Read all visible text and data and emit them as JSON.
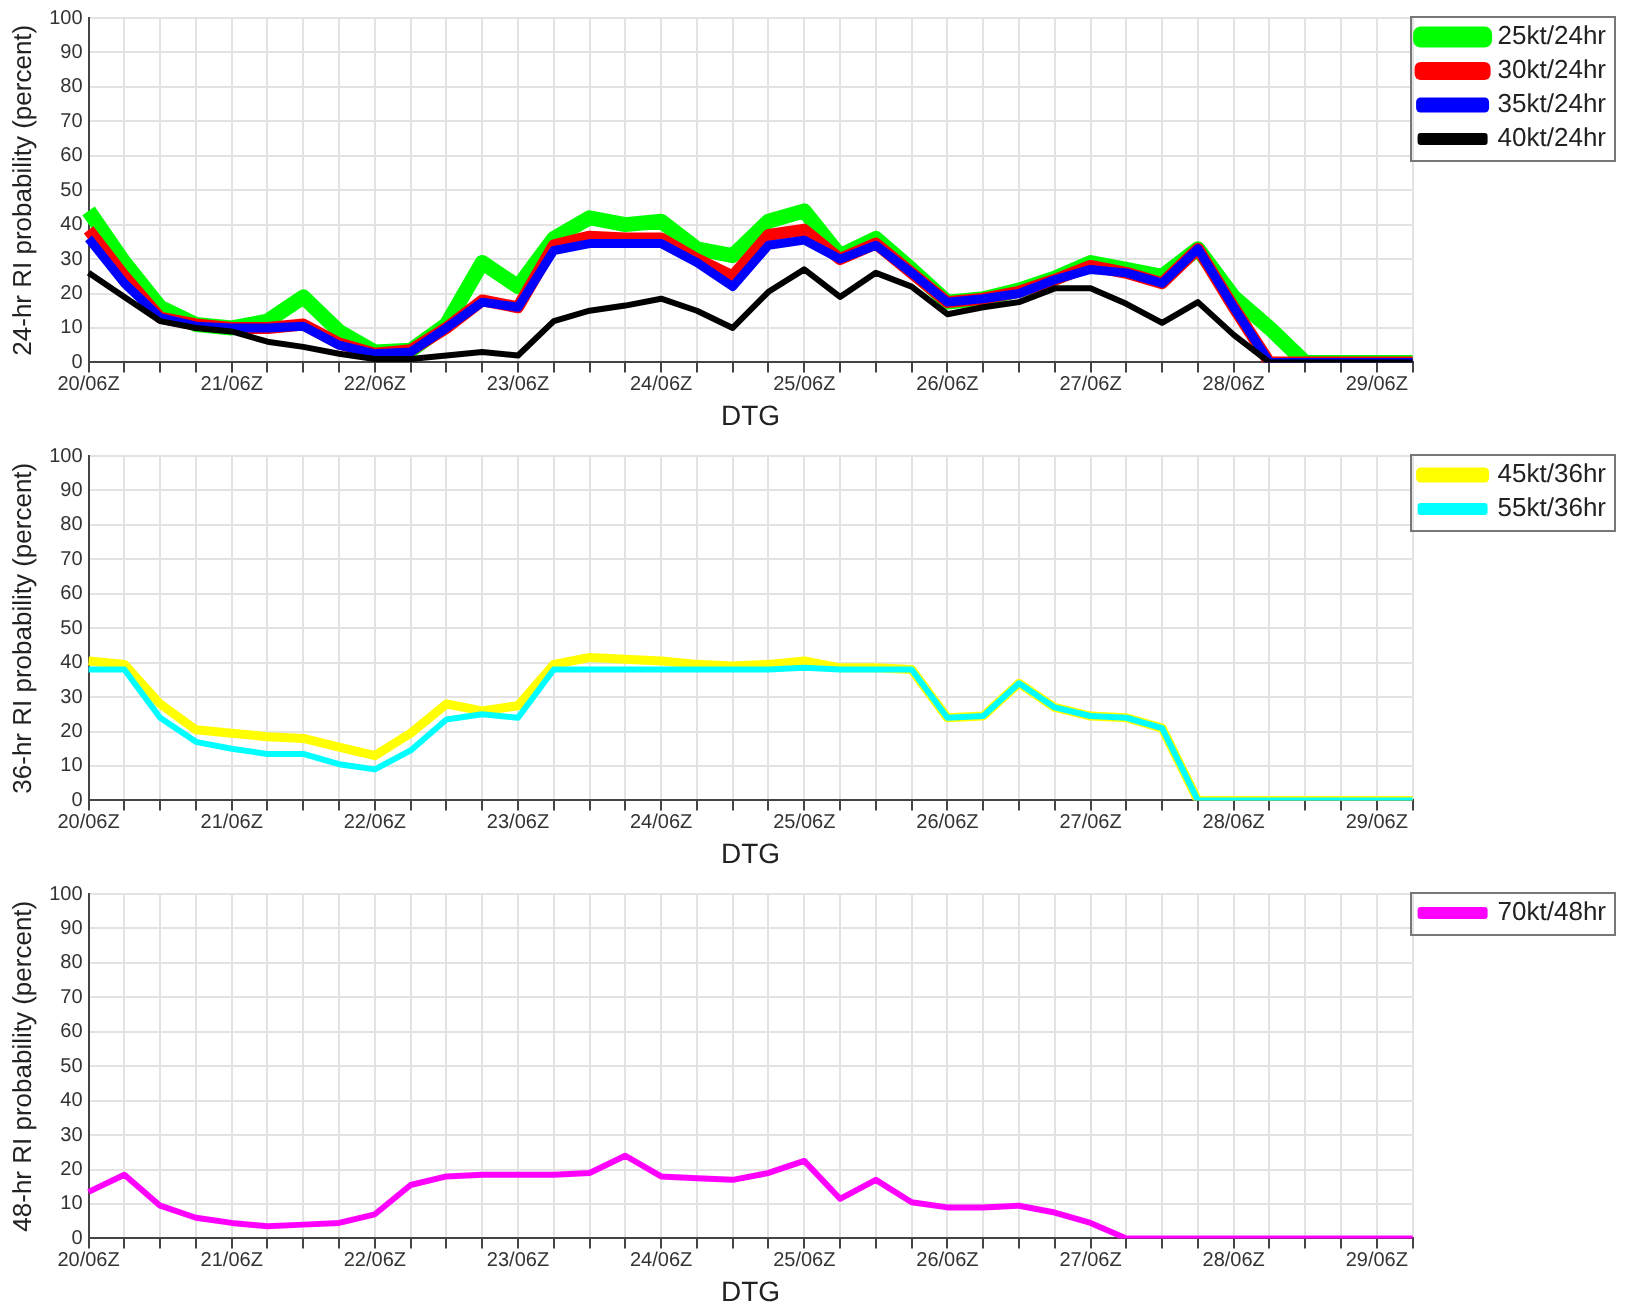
{
  "chart_data": [
    {
      "type": "line",
      "xlabel": "DTG",
      "ylabel": "24-hr RI probability (percent)",
      "legend": "top right",
      "grid": true,
      "categories": [
        "20/06Z",
        null,
        null,
        null,
        "21/06Z",
        null,
        null,
        null,
        "22/06Z",
        null,
        null,
        null,
        "23/06Z",
        null,
        null,
        null,
        "24/06Z",
        null,
        null,
        null,
        "25/06Z",
        null,
        null,
        null,
        "26/06Z",
        null,
        null,
        null,
        "27/06Z",
        null,
        null,
        null,
        "28/06Z",
        null,
        null,
        null,
        "29/06Z",
        null
      ],
      "ylim": [
        0,
        100
      ],
      "yticks": [
        0,
        10,
        20,
        30,
        40,
        50,
        60,
        70,
        80,
        90,
        100
      ],
      "series": [
        {
          "name": "25kt/24hr",
          "color": "#00ff00",
          "values": [
            44,
            29,
            16,
            11,
            10,
            12,
            19,
            9,
            3,
            3.5,
            11,
            29,
            22,
            36,
            42,
            40,
            41,
            33,
            31,
            41,
            44,
            31,
            36,
            27,
            17.5,
            18.5,
            21,
            24.5,
            29,
            27,
            25,
            33,
            19,
            10,
            0,
            0,
            0,
            0
          ]
        },
        {
          "name": "30kt/24hr",
          "color": "#ff0000",
          "values": [
            38.5,
            25,
            13,
            11,
            10,
            10,
            11,
            5.5,
            2.5,
            3.5,
            10,
            18,
            16,
            34,
            36.5,
            36,
            36,
            30,
            25,
            37,
            38.5,
            30,
            34.5,
            26,
            17.5,
            18.5,
            20.5,
            24,
            28,
            26,
            23,
            33,
            16,
            0,
            0,
            0,
            0,
            0
          ]
        },
        {
          "name": "35kt/24hr",
          "color": "#0000ff",
          "values": [
            36,
            23,
            13,
            10.5,
            10,
            10,
            10.5,
            5,
            2.5,
            3,
            10,
            17.5,
            16,
            32.5,
            34.5,
            34.5,
            34.5,
            29,
            22,
            34,
            35.5,
            30,
            34,
            26,
            17.5,
            18.5,
            20,
            24,
            27,
            26,
            23,
            33,
            16,
            0,
            0,
            0,
            0,
            0
          ]
        },
        {
          "name": "40kt/24hr",
          "color": "#000000",
          "values": [
            26,
            19,
            12,
            10,
            9,
            6,
            4.5,
            2.5,
            1,
            1,
            2,
            3,
            2,
            12,
            15,
            16.5,
            18.5,
            15,
            10,
            20.5,
            27,
            19,
            26,
            22,
            14,
            16,
            17.5,
            21.5,
            21.5,
            17,
            11.5,
            17.5,
            8,
            0,
            0,
            0,
            0,
            0
          ]
        }
      ]
    },
    {
      "type": "line",
      "xlabel": "DTG",
      "ylabel": "36-hr RI probability (percent)",
      "legend": "top right",
      "grid": true,
      "categories": [
        "20/06Z",
        null,
        null,
        null,
        "21/06Z",
        null,
        null,
        null,
        "22/06Z",
        null,
        null,
        null,
        "23/06Z",
        null,
        null,
        null,
        "24/06Z",
        null,
        null,
        null,
        "25/06Z",
        null,
        null,
        null,
        "26/06Z",
        null,
        null,
        null,
        "27/06Z",
        null,
        null,
        null,
        "28/06Z",
        null,
        null,
        null,
        "29/06Z",
        null
      ],
      "ylim": [
        0,
        100
      ],
      "yticks": [
        0,
        10,
        20,
        30,
        40,
        50,
        60,
        70,
        80,
        90,
        100
      ],
      "series": [
        {
          "name": "45kt/36hr",
          "color": "#ffff00",
          "values": [
            40.5,
            39.5,
            28,
            20.5,
            19.5,
            18.5,
            18,
            15.5,
            13,
            19.5,
            28,
            26,
            27.5,
            39.5,
            41.5,
            41,
            40.5,
            39.5,
            39,
            39.5,
            40.5,
            38.5,
            38.5,
            38,
            24,
            24.5,
            34,
            27,
            24.5,
            24,
            21,
            0,
            0,
            0,
            0,
            0,
            0,
            0
          ]
        },
        {
          "name": "55kt/36hr",
          "color": "#00ffff",
          "values": [
            38,
            38,
            24,
            17,
            15,
            13.5,
            13.5,
            10.5,
            9,
            14.5,
            23.5,
            25,
            24,
            38,
            38,
            38,
            38,
            38,
            38,
            38,
            38.5,
            38,
            38,
            38,
            24,
            24.5,
            34,
            27,
            24.5,
            24,
            21,
            0,
            0,
            0,
            0,
            0,
            0,
            0
          ]
        }
      ]
    },
    {
      "type": "line",
      "xlabel": "DTG",
      "ylabel": "48-hr RI probability (percent)",
      "legend": "top right",
      "grid": true,
      "categories": [
        "20/06Z",
        null,
        null,
        null,
        "21/06Z",
        null,
        null,
        null,
        "22/06Z",
        null,
        null,
        null,
        "23/06Z",
        null,
        null,
        null,
        "24/06Z",
        null,
        null,
        null,
        "25/06Z",
        null,
        null,
        null,
        "26/06Z",
        null,
        null,
        null,
        "27/06Z",
        null,
        null,
        null,
        "28/06Z",
        null,
        null,
        null,
        "29/06Z",
        null
      ],
      "ylim": [
        0,
        100
      ],
      "yticks": [
        0,
        10,
        20,
        30,
        40,
        50,
        60,
        70,
        80,
        90,
        100
      ],
      "series": [
        {
          "name": "70kt/48hr",
          "color": "#ff00ff",
          "values": [
            13.5,
            18.5,
            9.5,
            6,
            4.5,
            3.5,
            4,
            4.5,
            7,
            15.5,
            18,
            18.5,
            18.5,
            18.5,
            19,
            24,
            18,
            17.5,
            17,
            19,
            22.5,
            11.5,
            17,
            10.5,
            9,
            9,
            9.5,
            7.5,
            4.5,
            0,
            0,
            0,
            0,
            0,
            0,
            0,
            0,
            0
          ]
        }
      ]
    }
  ]
}
